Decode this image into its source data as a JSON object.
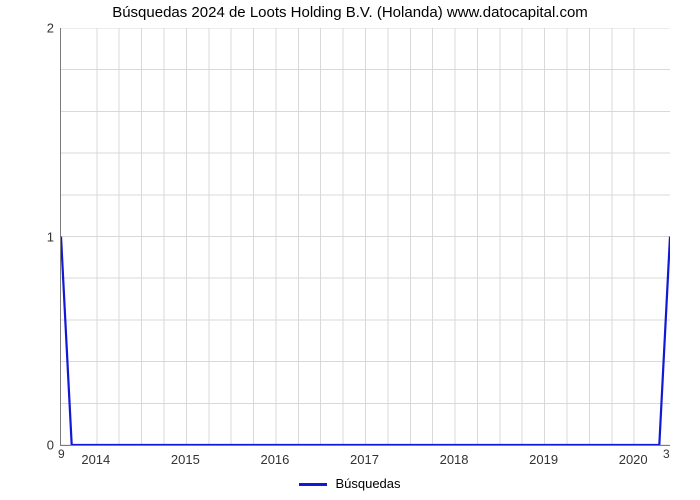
{
  "chart": {
    "type": "line",
    "title": "Búsquedas 2024 de Loots Holding B.V. (Holanda) www.datocapital.com",
    "title_fontsize": 15,
    "background_color": "#ffffff",
    "axis_color": "#7b7b7b",
    "grid_color": "#d9d9d9",
    "xlim": [
      2013.6,
      2020.4
    ],
    "ylim": [
      0,
      2
    ],
    "ytick_labels": [
      "0",
      "1",
      "2"
    ],
    "ytick_values": [
      0,
      1,
      2
    ],
    "y_minor_count": 4,
    "xtick_labels": [
      "2014",
      "2015",
      "2016",
      "2017",
      "2018",
      "2019",
      "2020"
    ],
    "xtick_values": [
      2014,
      2015,
      2016,
      2017,
      2018,
      2019,
      2020
    ],
    "x_minor_count": 3,
    "left_end_label": "9",
    "right_end_label": "3",
    "series": {
      "label": "Búsquedas",
      "color": "#1218d4",
      "line_width": 2.2,
      "x": [
        2013.6,
        2013.72,
        2020.28,
        2020.4
      ],
      "y": [
        1,
        0,
        0,
        1
      ]
    }
  }
}
